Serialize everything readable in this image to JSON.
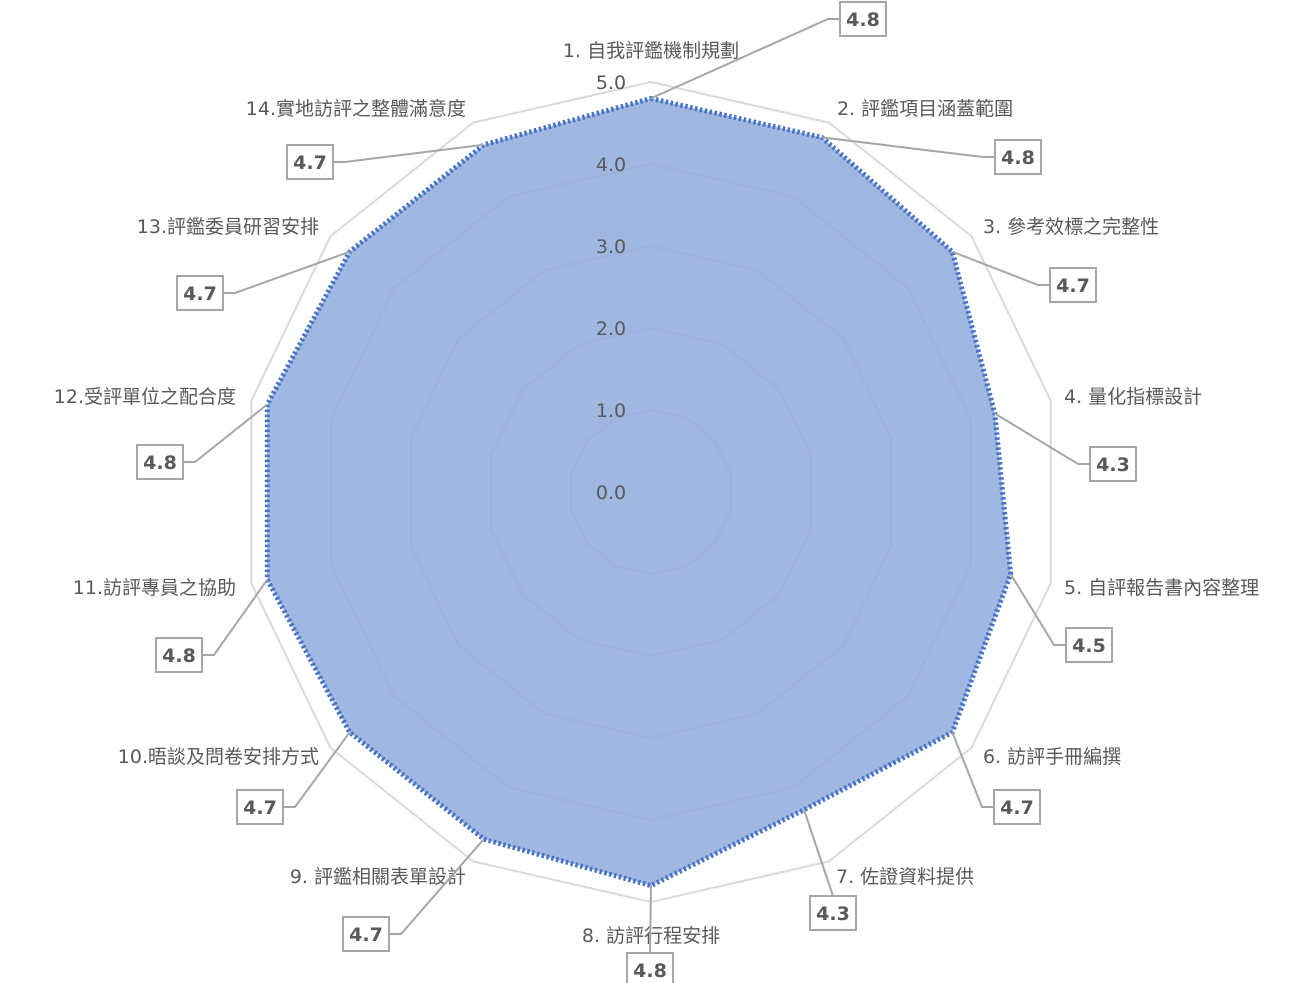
{
  "chart_data": {
    "type": "radar",
    "title": "",
    "categories": [
      "1. 自我評鑑機制規劃",
      "2. 評鑑項目涵蓋範圍",
      "3. 參考效標之完整性",
      "4. 量化指標設計",
      "5. 自評報告書內容整理",
      "6. 訪評手冊編撰",
      "7. 佐證資料提供",
      "8. 訪評行程安排",
      "9. 評鑑相關表單設計",
      "10.晤談及問卷安排方式",
      "11.訪評專員之協助",
      "12.受評單位之配合度",
      "13.評鑑委員研習安排",
      "14.實地訪評之整體滿意度"
    ],
    "series": [
      {
        "values": [
          4.8,
          4.8,
          4.7,
          4.3,
          4.5,
          4.7,
          4.3,
          4.8,
          4.7,
          4.7,
          4.8,
          4.8,
          4.7,
          4.7
        ],
        "value_labels": [
          "4.8",
          "4.8",
          "4.7",
          "4.3",
          "4.5",
          "4.7",
          "4.3",
          "4.8",
          "4.7",
          "4.7",
          "4.8",
          "4.8",
          "4.7",
          "4.7"
        ],
        "fill_color": "#8faadc",
        "line_color": "#4472c4",
        "line_style": "dotted"
      }
    ],
    "r_ticks": [
      "0.0",
      "1.0",
      "2.0",
      "3.0",
      "4.0",
      "5.0"
    ],
    "r_range": [
      0,
      5
    ],
    "grid": true,
    "legend": "none"
  }
}
